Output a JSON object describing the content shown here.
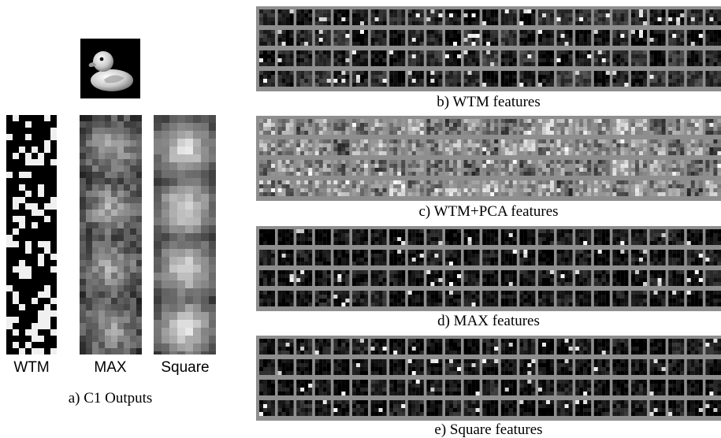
{
  "figure": {
    "c1_outputs": {
      "caption": "a) C1 Outputs",
      "columns": [
        {
          "id": "wtm",
          "label": "WTM"
        },
        {
          "id": "max",
          "label": "MAX"
        },
        {
          "id": "square",
          "label": "Square"
        }
      ]
    },
    "feature_panels": [
      {
        "id": "wtm",
        "caption": "b) WTM features"
      },
      {
        "id": "wtm-pca",
        "caption": "c) WTM+PCA features"
      },
      {
        "id": "max",
        "caption": "d) MAX features"
      },
      {
        "id": "square",
        "caption": "e) Square features"
      }
    ]
  }
}
